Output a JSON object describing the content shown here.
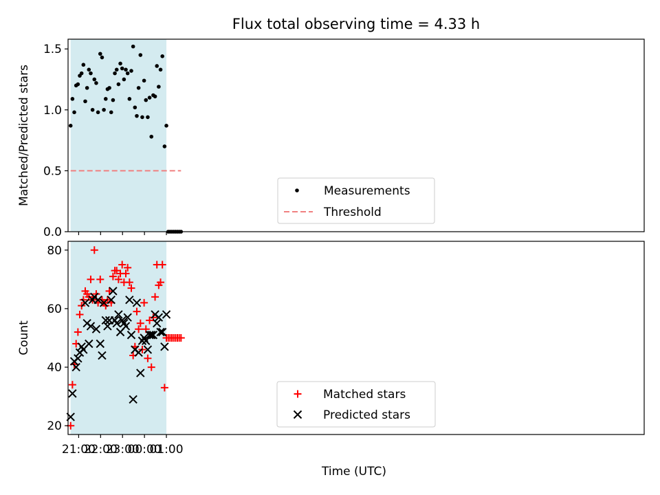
{
  "figure": {
    "title": "Flux total observing time = 4.33 h"
  },
  "chart_data": [
    {
      "type": "scatter",
      "panel": "top",
      "xlabel": "",
      "ylabel": "Matched/Predicted stars",
      "xlim": [
        "20:31",
        "22:47 (+1d)"
      ],
      "ylim": [
        0,
        1.58
      ],
      "yticks": [
        0.0,
        0.5,
        1.0,
        1.5
      ],
      "ytick_labels": [
        "0.0",
        "0.5",
        "1.0",
        "1.5"
      ],
      "shaded_span": [
        "20:38",
        "01:00"
      ],
      "shaded_color": "#d4ebf0",
      "legend_position": "lower center",
      "threshold": {
        "name": "Threshold",
        "value": 0.5,
        "x_start": "20:38",
        "x_end": "01:40",
        "color": "#f08080",
        "style": "dashed"
      },
      "series": [
        {
          "name": "Measurements",
          "color": "#000000",
          "marker": "dot",
          "points": [
            [
              "20:38",
              0.87
            ],
            [
              "20:43",
              1.09
            ],
            [
              "20:48",
              0.98
            ],
            [
              "20:53",
              1.2
            ],
            [
              "20:58",
              1.21
            ],
            [
              "21:03",
              1.28
            ],
            [
              "21:08",
              1.3
            ],
            [
              "21:13",
              1.37
            ],
            [
              "21:18",
              1.07
            ],
            [
              "21:23",
              1.18
            ],
            [
              "21:28",
              1.33
            ],
            [
              "21:33",
              1.3
            ],
            [
              "21:38",
              1.0
            ],
            [
              "21:43",
              1.25
            ],
            [
              "21:48",
              1.22
            ],
            [
              "21:53",
              0.98
            ],
            [
              "21:59",
              1.46
            ],
            [
              "22:04",
              1.43
            ],
            [
              "22:09",
              1.0
            ],
            [
              "22:14",
              1.09
            ],
            [
              "22:19",
              1.17
            ],
            [
              "22:24",
              1.18
            ],
            [
              "22:29",
              0.98
            ],
            [
              "22:34",
              1.08
            ],
            [
              "22:39",
              1.3
            ],
            [
              "22:44",
              1.33
            ],
            [
              "22:49",
              1.21
            ],
            [
              "22:54",
              1.38
            ],
            [
              "22:59",
              1.34
            ],
            [
              "23:04",
              1.25
            ],
            [
              "23:09",
              1.33
            ],
            [
              "23:14",
              1.3
            ],
            [
              "23:19",
              1.09
            ],
            [
              "23:24",
              1.32
            ],
            [
              "23:29",
              1.52
            ],
            [
              "23:34",
              1.02
            ],
            [
              "23:39",
              0.95
            ],
            [
              "23:44",
              1.18
            ],
            [
              "23:49",
              1.45
            ],
            [
              "23:54",
              0.94
            ],
            [
              "23:59",
              1.24
            ],
            [
              "00:04",
              1.08
            ],
            [
              "00:09",
              0.94
            ],
            [
              "00:14",
              1.1
            ],
            [
              "00:19",
              0.78
            ],
            [
              "00:24",
              1.12
            ],
            [
              "00:29",
              1.11
            ],
            [
              "00:34",
              1.36
            ],
            [
              "00:39",
              1.19
            ],
            [
              "00:44",
              1.33
            ],
            [
              "00:49",
              1.44
            ],
            [
              "00:55",
              0.7
            ],
            [
              "01:00",
              0.87
            ],
            [
              "01:05",
              0.0
            ],
            [
              "01:10",
              0.0
            ],
            [
              "01:15",
              0.0
            ],
            [
              "01:20",
              0.0
            ],
            [
              "01:25",
              0.0
            ],
            [
              "01:30",
              0.0
            ],
            [
              "01:35",
              0.0
            ],
            [
              "01:40",
              0.0
            ]
          ]
        }
      ]
    },
    {
      "type": "scatter",
      "panel": "bottom",
      "xlabel": "Time (UTC)",
      "ylabel": "Count",
      "xlim": [
        "20:31",
        "22:47 (+1d)"
      ],
      "xticks": [
        "21:00",
        "22:00",
        "23:00",
        "00:00",
        "01:00"
      ],
      "ylim": [
        17,
        83
      ],
      "yticks": [
        20,
        40,
        60,
        80
      ],
      "ytick_labels": [
        "20",
        "40",
        "60",
        "80"
      ],
      "shaded_span": [
        "20:38",
        "01:00"
      ],
      "shaded_color": "#d4ebf0",
      "legend_position": "lower center",
      "series": [
        {
          "name": "Matched stars",
          "color": "#ff0000",
          "marker": "plus",
          "points": [
            [
              "20:38",
              20
            ],
            [
              "20:43",
              34
            ],
            [
              "20:48",
              41
            ],
            [
              "20:53",
              48
            ],
            [
              "20:58",
              52
            ],
            [
              "21:03",
              58
            ],
            [
              "21:08",
              61
            ],
            [
              "21:13",
              63
            ],
            [
              "21:18",
              66
            ],
            [
              "21:23",
              65
            ],
            [
              "21:28",
              64
            ],
            [
              "21:33",
              70
            ],
            [
              "21:38",
              63
            ],
            [
              "21:43",
              80
            ],
            [
              "21:48",
              65
            ],
            [
              "21:53",
              62
            ],
            [
              "21:59",
              70
            ],
            [
              "22:04",
              63
            ],
            [
              "22:09",
              62
            ],
            [
              "22:14",
              61
            ],
            [
              "22:19",
              63
            ],
            [
              "22:24",
              66
            ],
            [
              "22:29",
              62
            ],
            [
              "22:34",
              71
            ],
            [
              "22:39",
              73
            ],
            [
              "22:44",
              73
            ],
            [
              "22:49",
              70
            ],
            [
              "22:54",
              72
            ],
            [
              "22:59",
              75
            ],
            [
              "23:04",
              69
            ],
            [
              "23:09",
              72
            ],
            [
              "23:14",
              74
            ],
            [
              "23:19",
              69
            ],
            [
              "23:24",
              67
            ],
            [
              "23:29",
              44
            ],
            [
              "23:34",
              47
            ],
            [
              "23:39",
              59
            ],
            [
              "23:44",
              53
            ],
            [
              "23:49",
              55
            ],
            [
              "23:54",
              46
            ],
            [
              "23:59",
              62
            ],
            [
              "00:04",
              53
            ],
            [
              "00:09",
              43
            ],
            [
              "00:14",
              56
            ],
            [
              "00:19",
              40
            ],
            [
              "00:24",
              57
            ],
            [
              "00:29",
              64
            ],
            [
              "00:34",
              75
            ],
            [
              "00:39",
              68
            ],
            [
              "00:44",
              69
            ],
            [
              "00:49",
              75
            ],
            [
              "00:55",
              33
            ],
            [
              "01:00",
              50
            ],
            [
              "01:05",
              50
            ],
            [
              "01:10",
              50
            ],
            [
              "01:15",
              50
            ],
            [
              "01:20",
              50
            ],
            [
              "01:25",
              50
            ],
            [
              "01:30",
              50
            ],
            [
              "01:35",
              50
            ],
            [
              "01:40",
              50
            ]
          ]
        },
        {
          "name": "Predicted stars",
          "color": "#000000",
          "marker": "x",
          "points": [
            [
              "20:38",
              23
            ],
            [
              "20:43",
              31
            ],
            [
              "20:48",
              42
            ],
            [
              "20:53",
              40
            ],
            [
              "20:58",
              43
            ],
            [
              "21:03",
              45
            ],
            [
              "21:08",
              47
            ],
            [
              "21:13",
              46
            ],
            [
              "21:18",
              62
            ],
            [
              "21:23",
              55
            ],
            [
              "21:28",
              48
            ],
            [
              "21:33",
              54
            ],
            [
              "21:38",
              63
            ],
            [
              "21:43",
              64
            ],
            [
              "21:48",
              53
            ],
            [
              "21:53",
              63
            ],
            [
              "21:59",
              48
            ],
            [
              "22:04",
              44
            ],
            [
              "22:09",
              62
            ],
            [
              "22:14",
              56
            ],
            [
              "22:19",
              54
            ],
            [
              "22:24",
              56
            ],
            [
              "22:29",
              63
            ],
            [
              "22:34",
              66
            ],
            [
              "22:39",
              56
            ],
            [
              "22:44",
              55
            ],
            [
              "22:49",
              58
            ],
            [
              "22:54",
              52
            ],
            [
              "22:59",
              56
            ],
            [
              "23:04",
              55
            ],
            [
              "23:09",
              54
            ],
            [
              "23:14",
              57
            ],
            [
              "23:19",
              63
            ],
            [
              "23:24",
              51
            ],
            [
              "23:29",
              29
            ],
            [
              "23:34",
              46
            ],
            [
              "23:39",
              62
            ],
            [
              "23:44",
              45
            ],
            [
              "23:49",
              38
            ],
            [
              "23:54",
              49
            ],
            [
              "23:59",
              50
            ],
            [
              "00:04",
              49
            ],
            [
              "00:09",
              46
            ],
            [
              "00:14",
              51
            ],
            [
              "00:19",
              51
            ],
            [
              "00:24",
              51
            ],
            [
              "00:29",
              58
            ],
            [
              "00:34",
              55
            ],
            [
              "00:39",
              57
            ],
            [
              "00:44",
              52
            ],
            [
              "00:49",
              52
            ],
            [
              "00:55",
              47
            ],
            [
              "01:00",
              58
            ]
          ]
        }
      ]
    }
  ]
}
